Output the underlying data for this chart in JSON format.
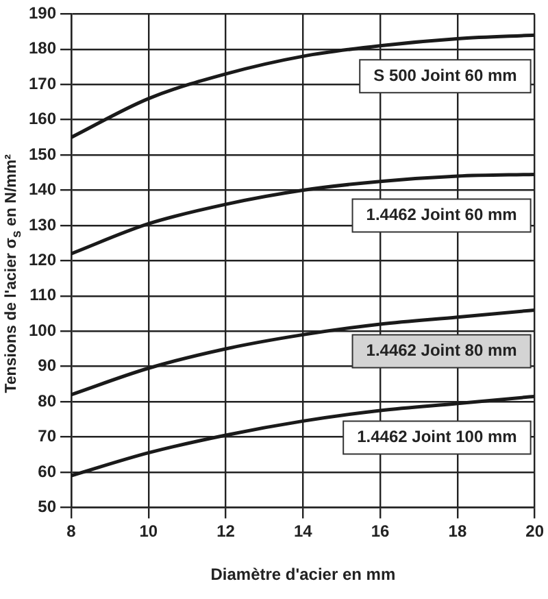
{
  "chart_data": {
    "type": "line",
    "xlabel": "Diamètre d'acier en mm",
    "ylabel": "Tensions de l'acier σ$_{s}$ en N/mm²",
    "x": [
      8,
      10,
      12,
      14,
      16,
      18,
      20
    ],
    "series": [
      {
        "name": "S 500 Joint 60 mm",
        "color": "#1a1a1a",
        "values": [
          155,
          166,
          173,
          178,
          181,
          183,
          184
        ]
      },
      {
        "name": "1.4462 Joint 60 mm",
        "color": "#1a1a1a",
        "values": [
          122,
          130.5,
          136,
          140,
          142.5,
          144,
          144.5
        ]
      },
      {
        "name": "1.4462 Joint 80 mm",
        "color": "#1a1a1a",
        "values": [
          82,
          89.5,
          95,
          99,
          102,
          104,
          106
        ]
      },
      {
        "name": "1.4462 Joint 100 mm",
        "color": "#1a1a1a",
        "values": [
          59,
          65.5,
          70.5,
          74.5,
          77.5,
          79.5,
          81.5
        ]
      }
    ],
    "xlim": [
      8,
      20
    ],
    "xticks": [
      8,
      10,
      12,
      14,
      16,
      18,
      20
    ],
    "ylim": [
      50,
      190
    ],
    "yticks": [
      50,
      60,
      70,
      80,
      90,
      100,
      110,
      120,
      130,
      140,
      150,
      160,
      170,
      180,
      190
    ],
    "grid": true,
    "legend": false,
    "marker": "none",
    "line_style": "solid"
  }
}
